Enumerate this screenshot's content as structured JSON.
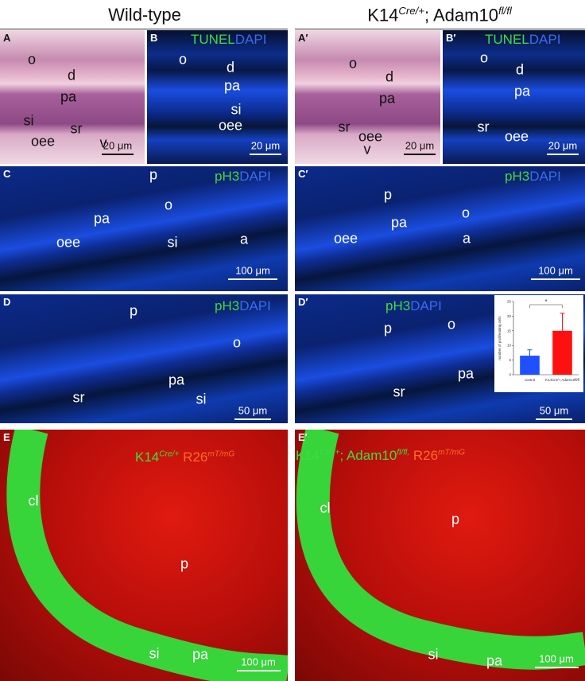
{
  "headers": [
    {
      "parts": [
        {
          "text": "Wild-type"
        }
      ]
    },
    {
      "parts": [
        {
          "text": "K14"
        },
        {
          "sup": "Cre/+"
        },
        {
          "text": "; Adam10"
        },
        {
          "sup": "fl/fl"
        }
      ]
    }
  ],
  "panels": [
    {
      "letter": "A",
      "labels": [
        "o",
        "d",
        "pa",
        "si",
        "sr",
        "oee",
        "v"
      ],
      "scale": "20 μm"
    },
    {
      "letter": "B",
      "stain": [
        {
          "text": "TUNEL",
          "color": "#3fdc3f"
        },
        {
          "text": "DAPI",
          "color": "#3a6cf0"
        }
      ],
      "labels": [
        "o",
        "d",
        "pa",
        "si",
        "oee"
      ],
      "scale": "20 μm"
    },
    {
      "letter": "A′",
      "labels": [
        "o",
        "d",
        "pa",
        "sr",
        "oee",
        "v"
      ],
      "scale": "20 μm"
    },
    {
      "letter": "B′",
      "stain": [
        {
          "text": "TUNEL",
          "color": "#3fdc3f"
        },
        {
          "text": "DAPI",
          "color": "#3a6cf0"
        }
      ],
      "labels": [
        "o",
        "d",
        "pa",
        "sr",
        "oee"
      ],
      "scale": "20 μm"
    },
    {
      "letter": "C",
      "stain": [
        {
          "text": "pH3",
          "color": "#3fdc3f"
        },
        {
          "text": "DAPI",
          "color": "#3a6cf0"
        }
      ],
      "labels": [
        "p",
        "o",
        "pa",
        "oee",
        "si",
        "a"
      ],
      "scale": "100 μm"
    },
    {
      "letter": "C′",
      "stain": [
        {
          "text": "pH3",
          "color": "#3fdc3f"
        },
        {
          "text": "DAPI",
          "color": "#3a6cf0"
        }
      ],
      "labels": [
        "p",
        "o",
        "pa",
        "oee",
        "a"
      ],
      "scale": "100 μm"
    },
    {
      "letter": "D",
      "stain": [
        {
          "text": "pH3",
          "color": "#3fdc3f"
        },
        {
          "text": "DAPI",
          "color": "#3a6cf0"
        }
      ],
      "labels": [
        "p",
        "o",
        "pa",
        "sr",
        "si"
      ],
      "scale": "50 μm"
    },
    {
      "letter": "D′",
      "stain": [
        {
          "text": "pH3",
          "color": "#3fdc3f"
        },
        {
          "text": "DAPI",
          "color": "#3a6cf0"
        }
      ],
      "labels": [
        "p",
        "o",
        "pa",
        "sr"
      ],
      "scale": "50 μm"
    },
    {
      "letter": "E",
      "stain": [
        {
          "text": "K14",
          "color": "#3fdc3f"
        },
        {
          "sup": "Cre/+",
          "color": "#3fdc3f"
        },
        {
          "text": " R26",
          "color": "#ff6a2a"
        },
        {
          "sup": "mT/mG",
          "color": "#ff6a2a"
        }
      ],
      "labels": [
        "cl",
        "p",
        "si",
        "pa"
      ],
      "scale": "100 μm"
    },
    {
      "letter": "E′",
      "stain": [
        {
          "text": "K14",
          "color": "#3fdc3f"
        },
        {
          "sup": "Cre/+",
          "color": "#3fdc3f"
        },
        {
          "text": "; Adam10",
          "color": "#3fdc3f"
        },
        {
          "sup": "fl/fl,",
          "color": "#3fdc3f"
        },
        {
          "text": " R26",
          "color": "#ff6a2a"
        },
        {
          "sup": "mT/mG",
          "color": "#ff6a2a"
        }
      ],
      "labels": [
        "cl",
        "p",
        "si",
        "pa"
      ],
      "scale": "100 μm"
    }
  ],
  "chart_data": {
    "type": "bar",
    "y_label": "number of proliferating cells",
    "categories": [
      "control",
      "K14Cre/+;Adam10fl/fl"
    ],
    "values": [
      6.5,
      15
    ],
    "errors": [
      2,
      6
    ],
    "colors": [
      "#1f4fff",
      "#ff1010"
    ],
    "ylim": [
      0,
      25
    ],
    "yticks": [
      0,
      5,
      10,
      15,
      20,
      25
    ],
    "annotation": "*"
  }
}
